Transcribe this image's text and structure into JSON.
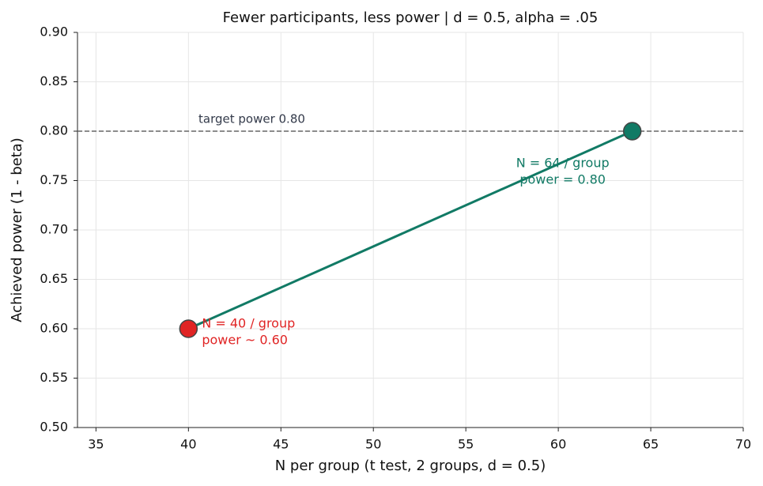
{
  "chart_data": {
    "type": "line",
    "title": "Fewer participants, less power  |  d = 0.5,  alpha = .05",
    "x_label": "N per group  (t test, 2 groups, d = 0.5)",
    "y_label": "Achieved power (1 - beta)",
    "x": [
      40,
      64
    ],
    "values": [
      0.6,
      0.8
    ],
    "color": "#117a65",
    "marker_colors": [
      "#e02424",
      "#117a65"
    ],
    "annotations": [
      [
        "N = 40 / group",
        "power ~ 0.60"
      ],
      [
        "N = 64 / group",
        "power = 0.80"
      ]
    ],
    "hline": {
      "value": 0.8,
      "label": "target power 0.80"
    },
    "xlim": [
      34,
      70
    ],
    "ylim": [
      0.5,
      0.9
    ],
    "xticks": [
      35,
      40,
      45,
      50,
      55,
      60,
      65,
      70
    ],
    "yticks": [
      {
        "value": 0.5,
        "label": "0.50"
      },
      0.55,
      {
        "value": 0.6,
        "label": "0.60"
      },
      0.65,
      {
        "value": 0.7,
        "label": "0.70"
      },
      0.75,
      {
        "value": 0.8,
        "label": "0.80"
      },
      0.85,
      {
        "value": 0.9,
        "label": "0.90"
      }
    ],
    "grid": true
  }
}
